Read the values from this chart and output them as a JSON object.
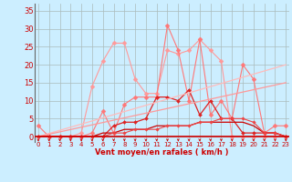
{
  "bg_color": "#cceeff",
  "grid_color": "#aabbbb",
  "xlabel": "Vent moyen/en rafales ( km/h )",
  "xlabel_color": "#cc0000",
  "ylabel_ticks": [
    0,
    5,
    10,
    15,
    20,
    25,
    30,
    35
  ],
  "xticks": [
    0,
    1,
    2,
    3,
    4,
    5,
    6,
    7,
    8,
    9,
    10,
    11,
    12,
    13,
    14,
    15,
    16,
    17,
    18,
    19,
    20,
    21,
    22,
    23
  ],
  "xlim": [
    -0.3,
    23.3
  ],
  "ylim": [
    -1.5,
    37
  ],
  "lines": [
    {
      "x": [
        0,
        1,
        2,
        3,
        4,
        5,
        6,
        7,
        8,
        9,
        10,
        11,
        12,
        13,
        14,
        15,
        16,
        17,
        18,
        19,
        20,
        21,
        22,
        23
      ],
      "y": [
        0,
        0,
        0,
        0,
        1,
        14,
        21,
        26,
        26,
        16,
        12,
        12,
        24,
        23,
        24,
        27,
        24,
        21,
        0,
        0,
        0,
        0,
        0,
        0
      ],
      "color": "#ff9999",
      "lw": 0.8,
      "marker": "D",
      "ms": 2.5
    },
    {
      "x": [
        0,
        1,
        2,
        3,
        4,
        5,
        6,
        7,
        8,
        9,
        10,
        11,
        12,
        13,
        14,
        15,
        16,
        17,
        18,
        19,
        20,
        21,
        22,
        23
      ],
      "y": [
        3,
        0,
        0,
        0,
        0,
        1,
        7,
        1,
        9,
        11,
        11,
        11,
        31,
        24,
        10,
        27,
        6,
        10,
        5,
        20,
        16,
        1,
        3,
        3
      ],
      "color": "#ff7777",
      "lw": 0.8,
      "marker": "D",
      "ms": 2.5
    },
    {
      "x": [
        0,
        1,
        2,
        3,
        4,
        5,
        6,
        7,
        8,
        9,
        10,
        11,
        12,
        13,
        14,
        15,
        16,
        17,
        18,
        19,
        20,
        21,
        22,
        23
      ],
      "y": [
        0,
        0,
        0,
        0,
        0,
        0,
        0,
        3,
        4,
        4,
        5,
        11,
        11,
        10,
        13,
        6,
        10,
        5,
        5,
        1,
        1,
        1,
        1,
        0
      ],
      "color": "#dd2222",
      "lw": 0.9,
      "marker": "D",
      "ms": 2.0
    },
    {
      "x": [
        0,
        23
      ],
      "y": [
        0,
        20
      ],
      "color": "#ffbbbb",
      "lw": 0.9,
      "marker": null,
      "ms": 0
    },
    {
      "x": [
        0,
        23
      ],
      "y": [
        0,
        15
      ],
      "color": "#ff9999",
      "lw": 0.9,
      "marker": null,
      "ms": 0
    },
    {
      "x": [
        0,
        1,
        2,
        3,
        4,
        5,
        6,
        7,
        8,
        9,
        10,
        11,
        12,
        13,
        14,
        15,
        16,
        17,
        18,
        19,
        20,
        21,
        22,
        23
      ],
      "y": [
        0,
        0,
        0,
        0,
        0,
        0,
        1,
        1,
        2,
        2,
        2,
        3,
        3,
        3,
        3,
        4,
        4,
        4,
        4,
        4,
        3,
        1,
        1,
        0
      ],
      "color": "#cc0000",
      "lw": 0.9,
      "marker": null,
      "ms": 0
    },
    {
      "x": [
        0,
        1,
        2,
        3,
        4,
        5,
        6,
        7,
        8,
        9,
        10,
        11,
        12,
        13,
        14,
        15,
        16,
        17,
        18,
        19,
        20,
        21,
        22,
        23
      ],
      "y": [
        0,
        0,
        0,
        0,
        0,
        0,
        0,
        1,
        1,
        2,
        2,
        2,
        3,
        3,
        3,
        4,
        4,
        5,
        5,
        5,
        4,
        1,
        1,
        0
      ],
      "color": "#ee4444",
      "lw": 0.8,
      "marker": "D",
      "ms": 1.8
    }
  ],
  "arrow_color": "#cc0000",
  "tick_color": "#cc0000",
  "tick_fontsize": 5.0,
  "ytick_fontsize": 6.0
}
